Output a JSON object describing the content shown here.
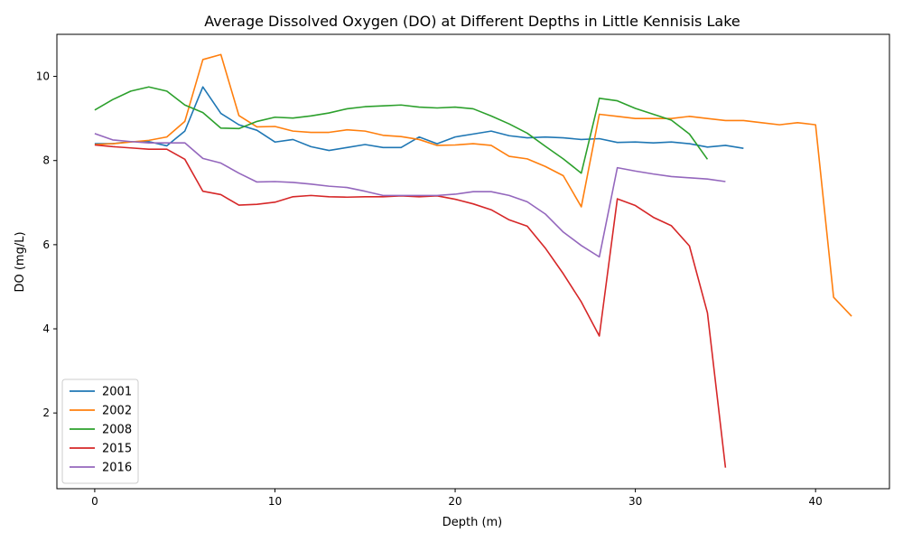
{
  "chart_data": {
    "type": "line",
    "title": "Average Dissolved Oxygen (DO) at Different Depths in Little Kennisis Lake",
    "xlabel": "Depth (m)",
    "ylabel": "DO (mg/L)",
    "xlim": [
      -2.1,
      44.1
    ],
    "ylim": [
      0.2,
      11.0
    ],
    "xticks": [
      0,
      10,
      20,
      30,
      40
    ],
    "yticks": [
      2,
      4,
      6,
      8,
      10
    ],
    "grid": false,
    "legend_position": "lower-left",
    "series": [
      {
        "name": "2001",
        "color": "#1f77b4",
        "x": [
          0,
          1,
          2,
          3,
          4,
          5,
          6,
          7,
          8,
          9,
          10,
          11,
          12,
          13,
          14,
          15,
          16,
          17,
          18,
          19,
          20,
          21,
          22,
          23,
          24,
          25,
          26,
          27,
          28,
          29,
          30,
          31,
          32,
          33,
          34,
          35,
          36
        ],
        "y": [
          8.4,
          8.4,
          8.45,
          8.45,
          8.35,
          8.7,
          9.75,
          9.12,
          8.85,
          8.72,
          8.44,
          8.5,
          8.33,
          8.24,
          8.31,
          8.38,
          8.31,
          8.31,
          8.56,
          8.4,
          8.56,
          8.63,
          8.7,
          8.59,
          8.54,
          8.56,
          8.54,
          8.5,
          8.52,
          8.43,
          8.44,
          8.42,
          8.44,
          8.4,
          8.32,
          8.36,
          8.29
        ]
      },
      {
        "name": "2002",
        "color": "#ff7f0e",
        "x": [
          0,
          1,
          2,
          3,
          4,
          5,
          6,
          7,
          8,
          9,
          10,
          11,
          12,
          13,
          14,
          15,
          16,
          17,
          18,
          19,
          20,
          21,
          22,
          23,
          24,
          25,
          26,
          27,
          28,
          29,
          30,
          31,
          32,
          33,
          34,
          35,
          36,
          37,
          38,
          39,
          40,
          41,
          42
        ],
        "y": [
          8.38,
          8.4,
          8.44,
          8.48,
          8.56,
          8.93,
          10.4,
          10.52,
          9.07,
          8.8,
          8.81,
          8.7,
          8.67,
          8.67,
          8.73,
          8.7,
          8.6,
          8.57,
          8.5,
          8.36,
          8.37,
          8.4,
          8.36,
          8.1,
          8.04,
          7.86,
          7.64,
          6.9,
          9.1,
          9.05,
          9.0,
          9.0,
          9.0,
          9.05,
          9.0,
          8.95,
          8.95,
          8.9,
          8.85,
          8.9,
          8.85,
          4.75,
          4.3
        ]
      },
      {
        "name": "2008",
        "color": "#2ca02c",
        "x": [
          0,
          1,
          2,
          3,
          4,
          5,
          6,
          7,
          8,
          9,
          10,
          11,
          12,
          13,
          14,
          15,
          16,
          17,
          18,
          19,
          20,
          21,
          22,
          23,
          24,
          25,
          26,
          27,
          28,
          29,
          30,
          31,
          32,
          33,
          34
        ],
        "y": [
          9.2,
          9.45,
          9.65,
          9.75,
          9.65,
          9.32,
          9.14,
          8.77,
          8.76,
          8.93,
          9.03,
          9.01,
          9.06,
          9.13,
          9.23,
          9.28,
          9.3,
          9.32,
          9.27,
          9.25,
          9.27,
          9.23,
          9.06,
          8.87,
          8.65,
          8.34,
          8.04,
          7.7,
          9.48,
          9.42,
          9.24,
          9.1,
          8.96,
          8.63,
          8.03
        ]
      },
      {
        "name": "2015",
        "color": "#d62728",
        "x": [
          0,
          1,
          2,
          3,
          4,
          5,
          6,
          7,
          8,
          9,
          10,
          11,
          12,
          13,
          14,
          15,
          16,
          17,
          18,
          19,
          20,
          21,
          22,
          23,
          24,
          25,
          26,
          27,
          28,
          29,
          30,
          31,
          32,
          33,
          34,
          35
        ],
        "y": [
          8.37,
          8.33,
          8.3,
          8.27,
          8.27,
          8.03,
          7.27,
          7.19,
          6.94,
          6.96,
          7.01,
          7.14,
          7.17,
          7.14,
          7.13,
          7.14,
          7.14,
          7.16,
          7.14,
          7.16,
          7.08,
          6.97,
          6.83,
          6.59,
          6.44,
          5.92,
          5.31,
          4.64,
          3.83,
          7.09,
          6.93,
          6.65,
          6.45,
          5.97,
          4.38,
          0.7
        ]
      },
      {
        "name": "2016",
        "color": "#9467bd",
        "x": [
          0,
          1,
          2,
          3,
          4,
          5,
          6,
          7,
          8,
          9,
          10,
          11,
          12,
          13,
          14,
          15,
          16,
          17,
          18,
          19,
          20,
          21,
          22,
          23,
          24,
          25,
          26,
          27,
          28,
          29,
          30,
          31,
          32,
          33,
          34,
          35
        ],
        "y": [
          8.64,
          8.49,
          8.45,
          8.42,
          8.42,
          8.42,
          8.05,
          7.94,
          7.7,
          7.49,
          7.5,
          7.48,
          7.44,
          7.39,
          7.36,
          7.27,
          7.17,
          7.17,
          7.17,
          7.17,
          7.2,
          7.26,
          7.26,
          7.17,
          7.02,
          6.73,
          6.3,
          5.98,
          5.71,
          7.83,
          7.75,
          7.68,
          7.62,
          7.59,
          7.56,
          7.5
        ]
      }
    ]
  }
}
